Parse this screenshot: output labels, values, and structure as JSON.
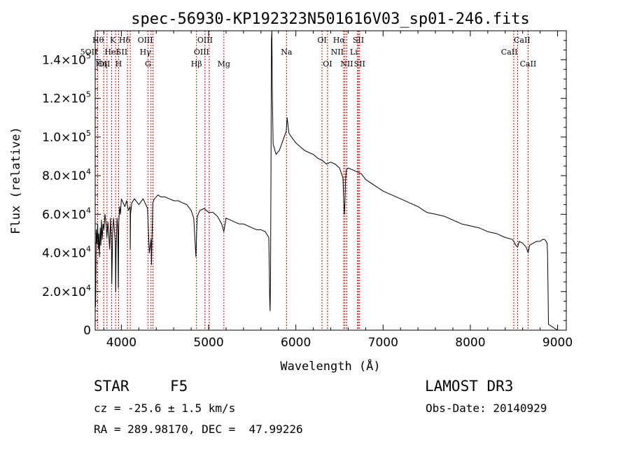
{
  "chart_data": {
    "type": "line",
    "title": "spec-56930-KP192323N501616V03_sp01-246.fits",
    "xlabel": "Wavelength (Å)",
    "ylabel": "Flux (relative)",
    "xlim": [
      3700,
      9100
    ],
    "ylim": [
      0,
      155000
    ],
    "xticks": [
      4000,
      5000,
      6000,
      7000,
      8000,
      9000
    ],
    "yticks": [
      {
        "value": 0,
        "mant": "0",
        "exp": ""
      },
      {
        "value": 20000,
        "mant": "2.0×10",
        "exp": "4"
      },
      {
        "value": 40000,
        "mant": "4.0×10",
        "exp": "4"
      },
      {
        "value": 60000,
        "mant": "6.0×10",
        "exp": "4"
      },
      {
        "value": 80000,
        "mant": "8.0×10",
        "exp": "4"
      },
      {
        "value": 100000,
        "mant": "1.0×10",
        "exp": "5"
      },
      {
        "value": 120000,
        "mant": "1.2×10",
        "exp": "5"
      },
      {
        "value": 140000,
        "mant": "1.4×10",
        "exp": "5"
      }
    ],
    "series": [
      {
        "name": "spectrum",
        "x": [
          3705,
          3712,
          3720,
          3728,
          3735,
          3742,
          3750,
          3758,
          3765,
          3772,
          3780,
          3790,
          3800,
          3812,
          3825,
          3835,
          3845,
          3855,
          3865,
          3875,
          3885,
          3890,
          3900,
          3910,
          3920,
          3930,
          3935,
          3940,
          3950,
          3960,
          3965,
          3970,
          3980,
          3990,
          4000,
          4020,
          4040,
          4060,
          4080,
          4100,
          4102,
          4105,
          4120,
          4150,
          4200,
          4250,
          4300,
          4320,
          4340,
          4345,
          4360,
          4380,
          4420,
          4450,
          4500,
          4550,
          4600,
          4650,
          4700,
          4750,
          4800,
          4830,
          4855,
          4861,
          4868,
          4880,
          4900,
          4950,
          5000,
          5050,
          5100,
          5150,
          5175,
          5200,
          5250,
          5300,
          5350,
          5400,
          5450,
          5500,
          5550,
          5600,
          5650,
          5690,
          5700,
          5705,
          5710,
          5715,
          5720,
          5725,
          5730,
          5740,
          5750,
          5760,
          5775,
          5790,
          5810,
          5850,
          5890,
          5900,
          5920,
          5950,
          6000,
          6050,
          6100,
          6150,
          6200,
          6250,
          6300,
          6350,
          6400,
          6450,
          6500,
          6540,
          6555,
          6563,
          6570,
          6580,
          6600,
          6650,
          6700,
          6750,
          6800,
          6900,
          7000,
          7100,
          7200,
          7300,
          7400,
          7500,
          7600,
          7700,
          7800,
          7900,
          8000,
          8100,
          8200,
          8300,
          8400,
          8480,
          8498,
          8520,
          8542,
          8560,
          8600,
          8640,
          8662,
          8680,
          8720,
          8760,
          8800,
          8830,
          8850,
          8870,
          8880,
          8885,
          8890,
          8895,
          9000
        ],
        "y": [
          12000,
          52000,
          45000,
          55000,
          42000,
          50000,
          38000,
          53000,
          44000,
          57000,
          47000,
          55000,
          52000,
          60000,
          55000,
          48000,
          56000,
          50000,
          42000,
          58000,
          46000,
          24000,
          50000,
          58000,
          52000,
          45000,
          20000,
          42000,
          58000,
          52000,
          22000,
          56000,
          64000,
          60000,
          68000,
          66000,
          64000,
          67000,
          62000,
          64000,
          42000,
          60000,
          66000,
          68000,
          65000,
          68000,
          63000,
          40000,
          47000,
          34000,
          66000,
          68000,
          70000,
          69000,
          69000,
          68000,
          67000,
          67000,
          66000,
          65000,
          62000,
          58000,
          38000,
          48000,
          58000,
          60000,
          62000,
          63000,
          61000,
          61000,
          59000,
          55000,
          51000,
          58000,
          57000,
          56000,
          55000,
          55000,
          54000,
          53000,
          52000,
          52000,
          51000,
          48000,
          16000,
          10000,
          30000,
          80000,
          150000,
          158000,
          124000,
          96000,
          95000,
          93000,
          91000,
          92000,
          93000,
          98000,
          103000,
          110000,
          102000,
          100000,
          97000,
          95000,
          93000,
          92000,
          91000,
          89000,
          88000,
          86000,
          87000,
          86000,
          84000,
          79000,
          60000,
          66000,
          78000,
          83000,
          84000,
          83000,
          82000,
          81000,
          78000,
          75000,
          72000,
          70000,
          68000,
          66000,
          64000,
          61000,
          60000,
          59000,
          57000,
          55000,
          54000,
          53000,
          51000,
          50000,
          48000,
          47000,
          46000,
          44000,
          43000,
          46000,
          45000,
          43000,
          40000,
          44000,
          45000,
          46000,
          46000,
          47000,
          47000,
          46000,
          45000,
          40000,
          25000,
          3000,
          0
        ]
      }
    ],
    "lines": [
      {
        "label": "Hθ",
        "wl": 3798,
        "row": 0,
        "align": "end"
      },
      {
        "label": "K",
        "wl": 3934,
        "row": 0,
        "align": "end"
      },
      {
        "label": "Hδ",
        "wl": 4102,
        "row": 0,
        "align": "end"
      },
      {
        "label": "OIII",
        "wl": 4363,
        "row": 0,
        "align": "end"
      },
      {
        "label": "OIII",
        "wl": 4959,
        "row": 0,
        "align": "middle"
      },
      {
        "label": "OI",
        "wl": 6300,
        "row": 0,
        "align": "middle"
      },
      {
        "label": "Hα",
        "wl": 6563,
        "row": 0,
        "align": "end"
      },
      {
        "label": "SII",
        "wl": 6717,
        "row": 0,
        "align": "middle"
      },
      {
        "label": "CaII",
        "wl": 8498,
        "row": 0,
        "align": "start"
      },
      {
        "label": "5OII",
        "wl": 3727,
        "row": 1,
        "align": "end"
      },
      {
        "label": "HeI",
        "wl": 3889,
        "row": 1,
        "align": "middle"
      },
      {
        "label": "SII",
        "wl": 4070,
        "row": 1,
        "align": "end"
      },
      {
        "label": "Hγ",
        "wl": 4340,
        "row": 1,
        "align": "end"
      },
      {
        "label": "OIII",
        "wl": 5007,
        "row": 1,
        "align": "end"
      },
      {
        "label": "Na",
        "wl": 5893,
        "row": 1,
        "align": "middle"
      },
      {
        "label": "NII",
        "wl": 6548,
        "row": 1,
        "align": "end"
      },
      {
        "label": "Li",
        "wl": 6707,
        "row": 1,
        "align": "end"
      },
      {
        "label": "CaII",
        "wl": 8542,
        "row": 1,
        "align": "end"
      },
      {
        "label": "OII",
        "wl": 3729,
        "row": 2,
        "align": "start"
      },
      {
        "label": "Hη",
        "wl": 3835,
        "row": 2,
        "align": "end"
      },
      {
        "label": "H",
        "wl": 3968,
        "row": 2,
        "align": "middle"
      },
      {
        "label": "G",
        "wl": 4305,
        "row": 2,
        "align": "middle"
      },
      {
        "label": "Hβ",
        "wl": 4861,
        "row": 2,
        "align": "middle"
      },
      {
        "label": "Mg",
        "wl": 5175,
        "row": 2,
        "align": "middle"
      },
      {
        "label": "OI",
        "wl": 6363,
        "row": 2,
        "align": "middle"
      },
      {
        "label": "NII",
        "wl": 6584,
        "row": 2,
        "align": "middle"
      },
      {
        "label": "SII",
        "wl": 6731,
        "row": 2,
        "align": "middle"
      },
      {
        "label": "CaII",
        "wl": 8662,
        "row": 2,
        "align": "middle"
      }
    ],
    "line_color": "#cc0000"
  },
  "info": {
    "object_type": "STAR",
    "spectral_class": "F5",
    "survey": "LAMOST DR3",
    "cz": "cz = -25.6 ± 1.5 km/s",
    "obs_date": "Obs-Date: 20140929",
    "coords": "RA = 289.98170, DEC =  47.99226"
  }
}
